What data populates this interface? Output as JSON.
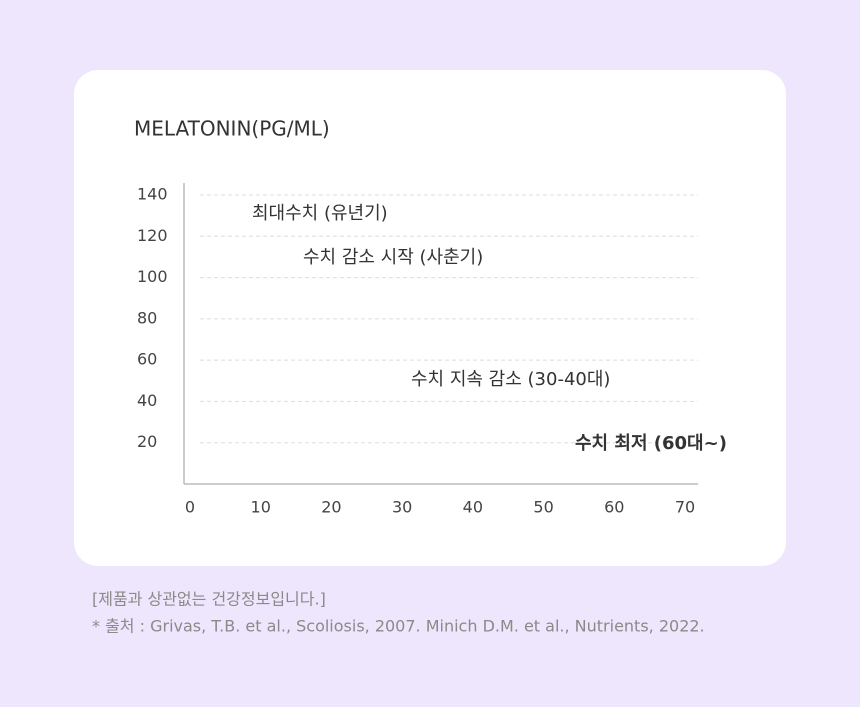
{
  "chart_data": {
    "type": "annotated-axes",
    "title": "MELATONIN(PG/ML)",
    "xlim": [
      0,
      70
    ],
    "xticks": [
      0,
      10,
      20,
      30,
      40,
      50,
      60,
      70
    ],
    "ylim": [
      0,
      140
    ],
    "yticks": [
      20,
      40,
      60,
      80,
      100,
      120,
      140
    ],
    "grid": true,
    "annotations": [
      "최대수치  (유년기)",
      "수치 감소 시작 (사춘기)",
      "수치 지속 감소 (30-40대)",
      "수치 최저 (60대~)"
    ]
  },
  "notes": [
    "[제품과 상관없는 건강정보입니다.]",
    "* 출처 : Grivas, T.B. et al., Scoliosis, 2007. Minich D.M. et al., Nutrients, 2022."
  ]
}
